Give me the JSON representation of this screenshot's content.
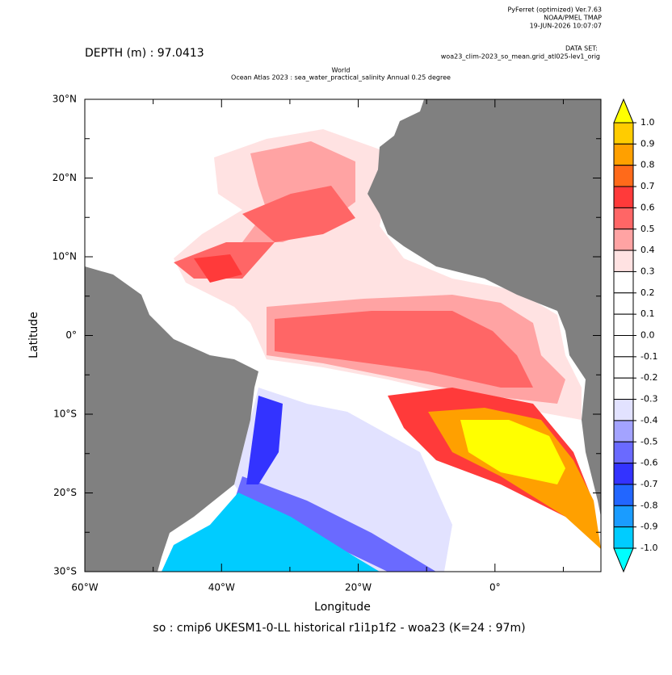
{
  "header": {
    "software": "PyFerret (optimized) Ver.7.63",
    "org": "NOAA/PMEL TMAP",
    "timestamp": "19-JUN-2026 10:07:07",
    "dataset_label": "DATA SET:",
    "dataset": "woa23_clim-2023_so_mean.grid_atl025-lev1_orig",
    "depth": "DEPTH (m) : 97.0413",
    "title_line1": "World",
    "title_line2": "Ocean Atlas 2023 : sea_water_practical_salinity Annual  0.25 degree"
  },
  "map": {
    "xlabel": "Longitude",
    "ylabel": "Latitude",
    "xlim": [
      -60,
      15.5
    ],
    "ylim": [
      -30,
      30
    ],
    "xticks": [
      {
        "value": -60,
        "label": "60°W"
      },
      {
        "value": -40,
        "label": "40°W"
      },
      {
        "value": -20,
        "label": "20°W"
      },
      {
        "value": 0,
        "label": "0°"
      }
    ],
    "xminor_ticks": [
      -50,
      -30,
      -10,
      10
    ],
    "yticks": [
      {
        "value": 30,
        "label": "30°N"
      },
      {
        "value": 20,
        "label": "20°N"
      },
      {
        "value": 10,
        "label": "10°N"
      },
      {
        "value": 0,
        "label": "0°"
      },
      {
        "value": -10,
        "label": "10°S"
      },
      {
        "value": -20,
        "label": "20°S"
      },
      {
        "value": -30,
        "label": "30°S"
      }
    ],
    "yminor_ticks": [
      25,
      15,
      5,
      -5,
      -15,
      -25
    ],
    "caption": "so : cmip6 UKESM1-0-LL historical r1i1p1f2 - woa23  (K=24 : 97m)"
  },
  "colorbar": {
    "levels": [
      {
        "value": 1.0,
        "label": "1.0"
      },
      {
        "value": 0.9,
        "label": "0.9"
      },
      {
        "value": 0.8,
        "label": "0.8"
      },
      {
        "value": 0.7,
        "label": "0.7"
      },
      {
        "value": 0.6,
        "label": "0.6"
      },
      {
        "value": 0.5,
        "label": "0.5"
      },
      {
        "value": 0.4,
        "label": "0.4"
      },
      {
        "value": 0.3,
        "label": "0.3"
      },
      {
        "value": 0.2,
        "label": "0.2"
      },
      {
        "value": 0.1,
        "label": "0.1"
      },
      {
        "value": 0.0,
        "label": "0.0"
      },
      {
        "value": -0.1,
        "label": "-0.1"
      },
      {
        "value": -0.2,
        "label": "-0.2"
      },
      {
        "value": -0.3,
        "label": "-0.3"
      },
      {
        "value": -0.4,
        "label": "-0.4"
      },
      {
        "value": -0.5,
        "label": "-0.5"
      },
      {
        "value": -0.6,
        "label": "-0.6"
      },
      {
        "value": -0.7,
        "label": "-0.7"
      },
      {
        "value": -0.8,
        "label": "-0.8"
      },
      {
        "value": -0.9,
        "label": "-0.9"
      },
      {
        "value": -1.0,
        "label": "-1.0"
      }
    ],
    "colors": [
      "#ffff00",
      "#ffcc00",
      "#ffa000",
      "#ff6a1a",
      "#ff3a3a",
      "#ff6666",
      "#ffa3a3",
      "#ffe2e2",
      "#ffffff",
      "#ffffff",
      "#ffffff",
      "#ffffff",
      "#ffffff",
      "#ffffff",
      "#e2e2ff",
      "#a3a3ff",
      "#6a6aff",
      "#3333ff",
      "#2266ff",
      "#1a9cff",
      "#00ccff",
      "#00ffff"
    ]
  }
}
